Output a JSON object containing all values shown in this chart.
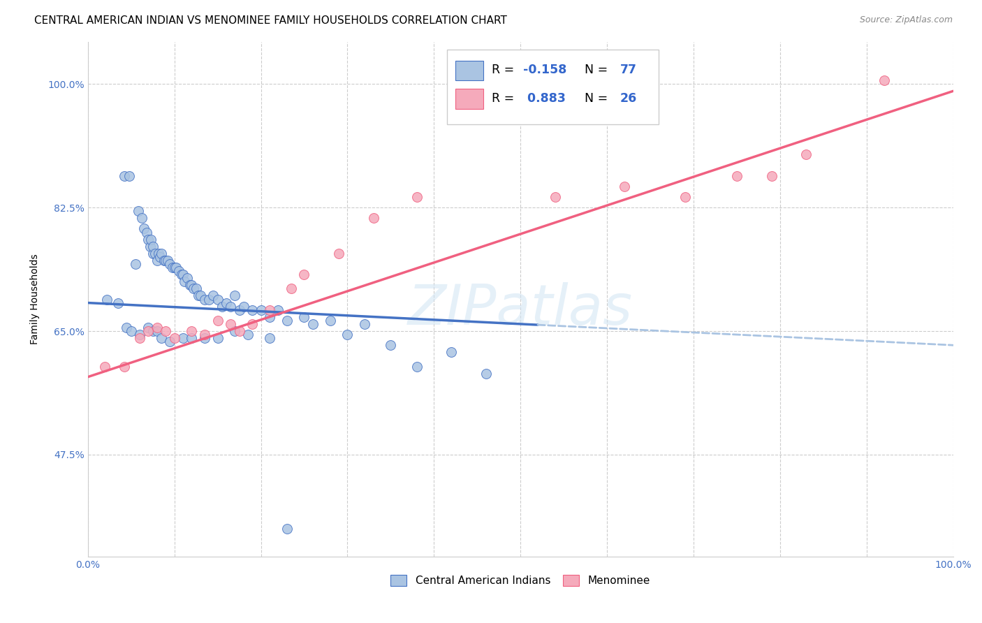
{
  "title": "CENTRAL AMERICAN INDIAN VS MENOMINEE FAMILY HOUSEHOLDS CORRELATION CHART",
  "source": "Source: ZipAtlas.com",
  "ylabel": "Family Households",
  "xlim": [
    0,
    1
  ],
  "ylim": [
    0.33,
    1.06
  ],
  "yticks": [
    0.475,
    0.65,
    0.825,
    1.0
  ],
  "ytick_labels": [
    "47.5%",
    "65.0%",
    "82.5%",
    "100.0%"
  ],
  "xticks": [
    0.0,
    0.1,
    0.2,
    0.3,
    0.4,
    0.5,
    0.6,
    0.7,
    0.8,
    0.9,
    1.0
  ],
  "xtick_labels": [
    "0.0%",
    "",
    "",
    "",
    "",
    "",
    "",
    "",
    "",
    "",
    "100.0%"
  ],
  "blue_color": "#aac4e2",
  "pink_color": "#f5aabb",
  "blue_line_color": "#4472c4",
  "pink_line_color": "#f06080",
  "blue_dash_color": "#aac4e2",
  "watermark": "ZIPatlas",
  "legend1_label": "Central American Indians",
  "legend2_label": "Menominee",
  "blue_scatter_x": [
    0.022,
    0.042,
    0.048,
    0.055,
    0.058,
    0.062,
    0.065,
    0.068,
    0.07,
    0.072,
    0.073,
    0.075,
    0.075,
    0.078,
    0.08,
    0.082,
    0.083,
    0.085,
    0.088,
    0.09,
    0.092,
    0.095,
    0.098,
    0.1,
    0.102,
    0.105,
    0.108,
    0.11,
    0.112,
    0.115,
    0.118,
    0.12,
    0.122,
    0.125,
    0.128,
    0.13,
    0.135,
    0.14,
    0.145,
    0.15,
    0.155,
    0.16,
    0.165,
    0.17,
    0.175,
    0.18,
    0.19,
    0.2,
    0.21,
    0.22,
    0.23,
    0.25,
    0.26,
    0.28,
    0.3,
    0.32,
    0.35,
    0.38,
    0.42,
    0.46,
    0.035,
    0.045,
    0.05,
    0.06,
    0.07,
    0.075,
    0.08,
    0.085,
    0.095,
    0.11,
    0.12,
    0.135,
    0.15,
    0.17,
    0.185,
    0.21,
    0.23
  ],
  "blue_scatter_y": [
    0.695,
    0.87,
    0.87,
    0.745,
    0.82,
    0.81,
    0.795,
    0.79,
    0.78,
    0.77,
    0.78,
    0.76,
    0.77,
    0.76,
    0.75,
    0.76,
    0.755,
    0.76,
    0.75,
    0.75,
    0.75,
    0.745,
    0.74,
    0.74,
    0.74,
    0.735,
    0.73,
    0.73,
    0.72,
    0.725,
    0.715,
    0.715,
    0.71,
    0.71,
    0.7,
    0.7,
    0.695,
    0.695,
    0.7,
    0.695,
    0.685,
    0.69,
    0.685,
    0.7,
    0.68,
    0.685,
    0.68,
    0.68,
    0.67,
    0.68,
    0.665,
    0.67,
    0.66,
    0.665,
    0.645,
    0.66,
    0.63,
    0.6,
    0.62,
    0.59,
    0.69,
    0.655,
    0.65,
    0.645,
    0.655,
    0.65,
    0.65,
    0.64,
    0.635,
    0.64,
    0.64,
    0.64,
    0.64,
    0.65,
    0.645,
    0.64,
    0.37
  ],
  "pink_scatter_x": [
    0.02,
    0.042,
    0.06,
    0.07,
    0.08,
    0.09,
    0.1,
    0.12,
    0.135,
    0.15,
    0.165,
    0.175,
    0.19,
    0.21,
    0.235,
    0.25,
    0.29,
    0.33,
    0.38,
    0.54,
    0.62,
    0.69,
    0.75,
    0.79,
    0.83,
    0.92
  ],
  "pink_scatter_y": [
    0.6,
    0.6,
    0.64,
    0.65,
    0.655,
    0.65,
    0.64,
    0.65,
    0.645,
    0.665,
    0.66,
    0.65,
    0.66,
    0.68,
    0.71,
    0.73,
    0.76,
    0.81,
    0.84,
    0.84,
    0.855,
    0.84,
    0.87,
    0.87,
    0.9,
    1.005
  ],
  "blue_line_start_x": 0.0,
  "blue_line_end_solid_x": 0.52,
  "blue_line_end_x": 1.0,
  "blue_line_start_y": 0.69,
  "blue_line_end_y": 0.63,
  "pink_line_start_x": 0.0,
  "pink_line_end_x": 1.0,
  "pink_line_start_y": 0.585,
  "pink_line_end_y": 0.99,
  "title_fontsize": 11,
  "axis_label_fontsize": 10,
  "tick_fontsize": 10,
  "source_fontsize": 9
}
